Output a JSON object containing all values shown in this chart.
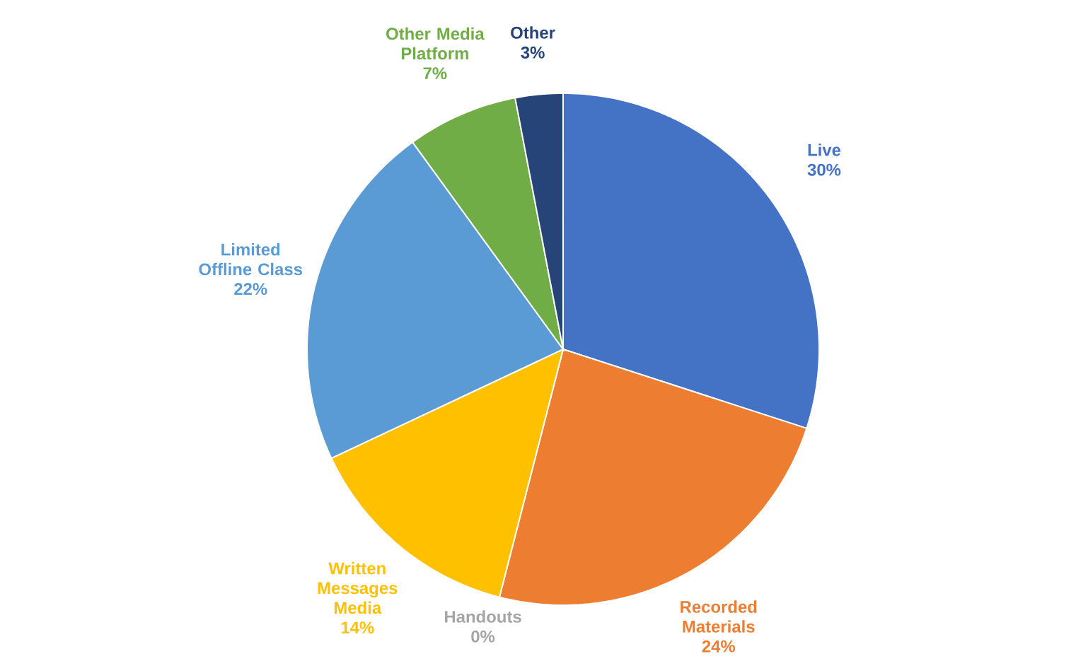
{
  "chart_data": {
    "type": "pie",
    "categories": [
      "Live",
      "Recorded Materials",
      "Handouts",
      "Written Messages Media",
      "Limited Offline Class",
      "Other Media Platform",
      "Other"
    ],
    "values": [
      30,
      24,
      0,
      14,
      22,
      7,
      3
    ],
    "value_labels": [
      "30%",
      "24%",
      "0%",
      "14%",
      "22%",
      "7%",
      "3%"
    ],
    "colors": [
      "#4472c4",
      "#ed7d31",
      "#a5a5a5",
      "#ffc000",
      "#5b9bd5",
      "#70ad47",
      "#264478"
    ]
  }
}
